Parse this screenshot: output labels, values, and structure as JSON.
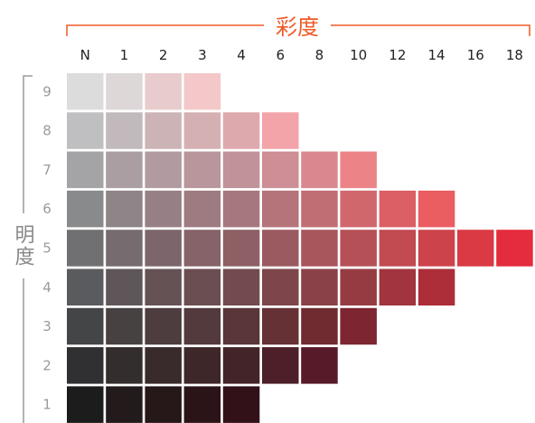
{
  "chart_data": {
    "type": "heatmap",
    "x_title": "彩度",
    "y_title": "明度",
    "x_labels": [
      "N",
      "1",
      "2",
      "3",
      "4",
      "6",
      "8",
      "10",
      "12",
      "14",
      "16",
      "18"
    ],
    "y_labels": [
      "9",
      "8",
      "7",
      "6",
      "5",
      "4",
      "3",
      "2",
      "1"
    ],
    "rows": [
      {
        "value": "9",
        "colors": [
          "#dcdcdc",
          "#ddd7d8",
          "#e8cccd",
          "#f4c8c8"
        ]
      },
      {
        "value": "8",
        "colors": [
          "#bfbfc1",
          "#c1b9bb",
          "#ccb3b5",
          "#d5b0b3",
          "#dea9ad",
          "#f2a4a8"
        ]
      },
      {
        "value": "7",
        "colors": [
          "#a4a4a6",
          "#aa9ea2",
          "#b19ba0",
          "#b8969c",
          "#c09299",
          "#cd8e95",
          "#da8890",
          "#ec8487"
        ]
      },
      {
        "value": "6",
        "colors": [
          "#898a8c",
          "#8f8487",
          "#978085",
          "#9e7b81",
          "#a6787e",
          "#b5737a",
          "#c16d74",
          "#d0676d",
          "#dc5f66",
          "#ea5d60"
        ]
      },
      {
        "value": "5",
        "colors": [
          "#707073",
          "#766b6f",
          "#7d666b",
          "#856368",
          "#8e5f64",
          "#9b5a60",
          "#a8555b",
          "#b65057",
          "#c24a51",
          "#cd434b",
          "#d93a44",
          "#e42c3c"
        ]
      },
      {
        "value": "4",
        "colors": [
          "#5a5b5e",
          "#5f5659",
          "#645255",
          "#6b4e51",
          "#734a4d",
          "#7e464a",
          "#8a4147",
          "#963b42",
          "#a1343d",
          "#ad2d38"
        ]
      },
      {
        "value": "3",
        "colors": [
          "#444547",
          "#484142",
          "#4d3d3f",
          "#533a3c",
          "#5a3638",
          "#663135",
          "#702b30",
          "#7d2530"
        ]
      },
      {
        "value": "2",
        "colors": [
          "#303032",
          "#342d2e",
          "#392a2b",
          "#3e2729",
          "#432428",
          "#4d1f28",
          "#571a28"
        ]
      },
      {
        "value": "1",
        "colors": [
          "#1c1c1d",
          "#221a1b",
          "#261719",
          "#2b1418",
          "#321119"
        ]
      }
    ],
    "accent_color": "#f05a28",
    "bracket_color": "#9a9a9a"
  }
}
